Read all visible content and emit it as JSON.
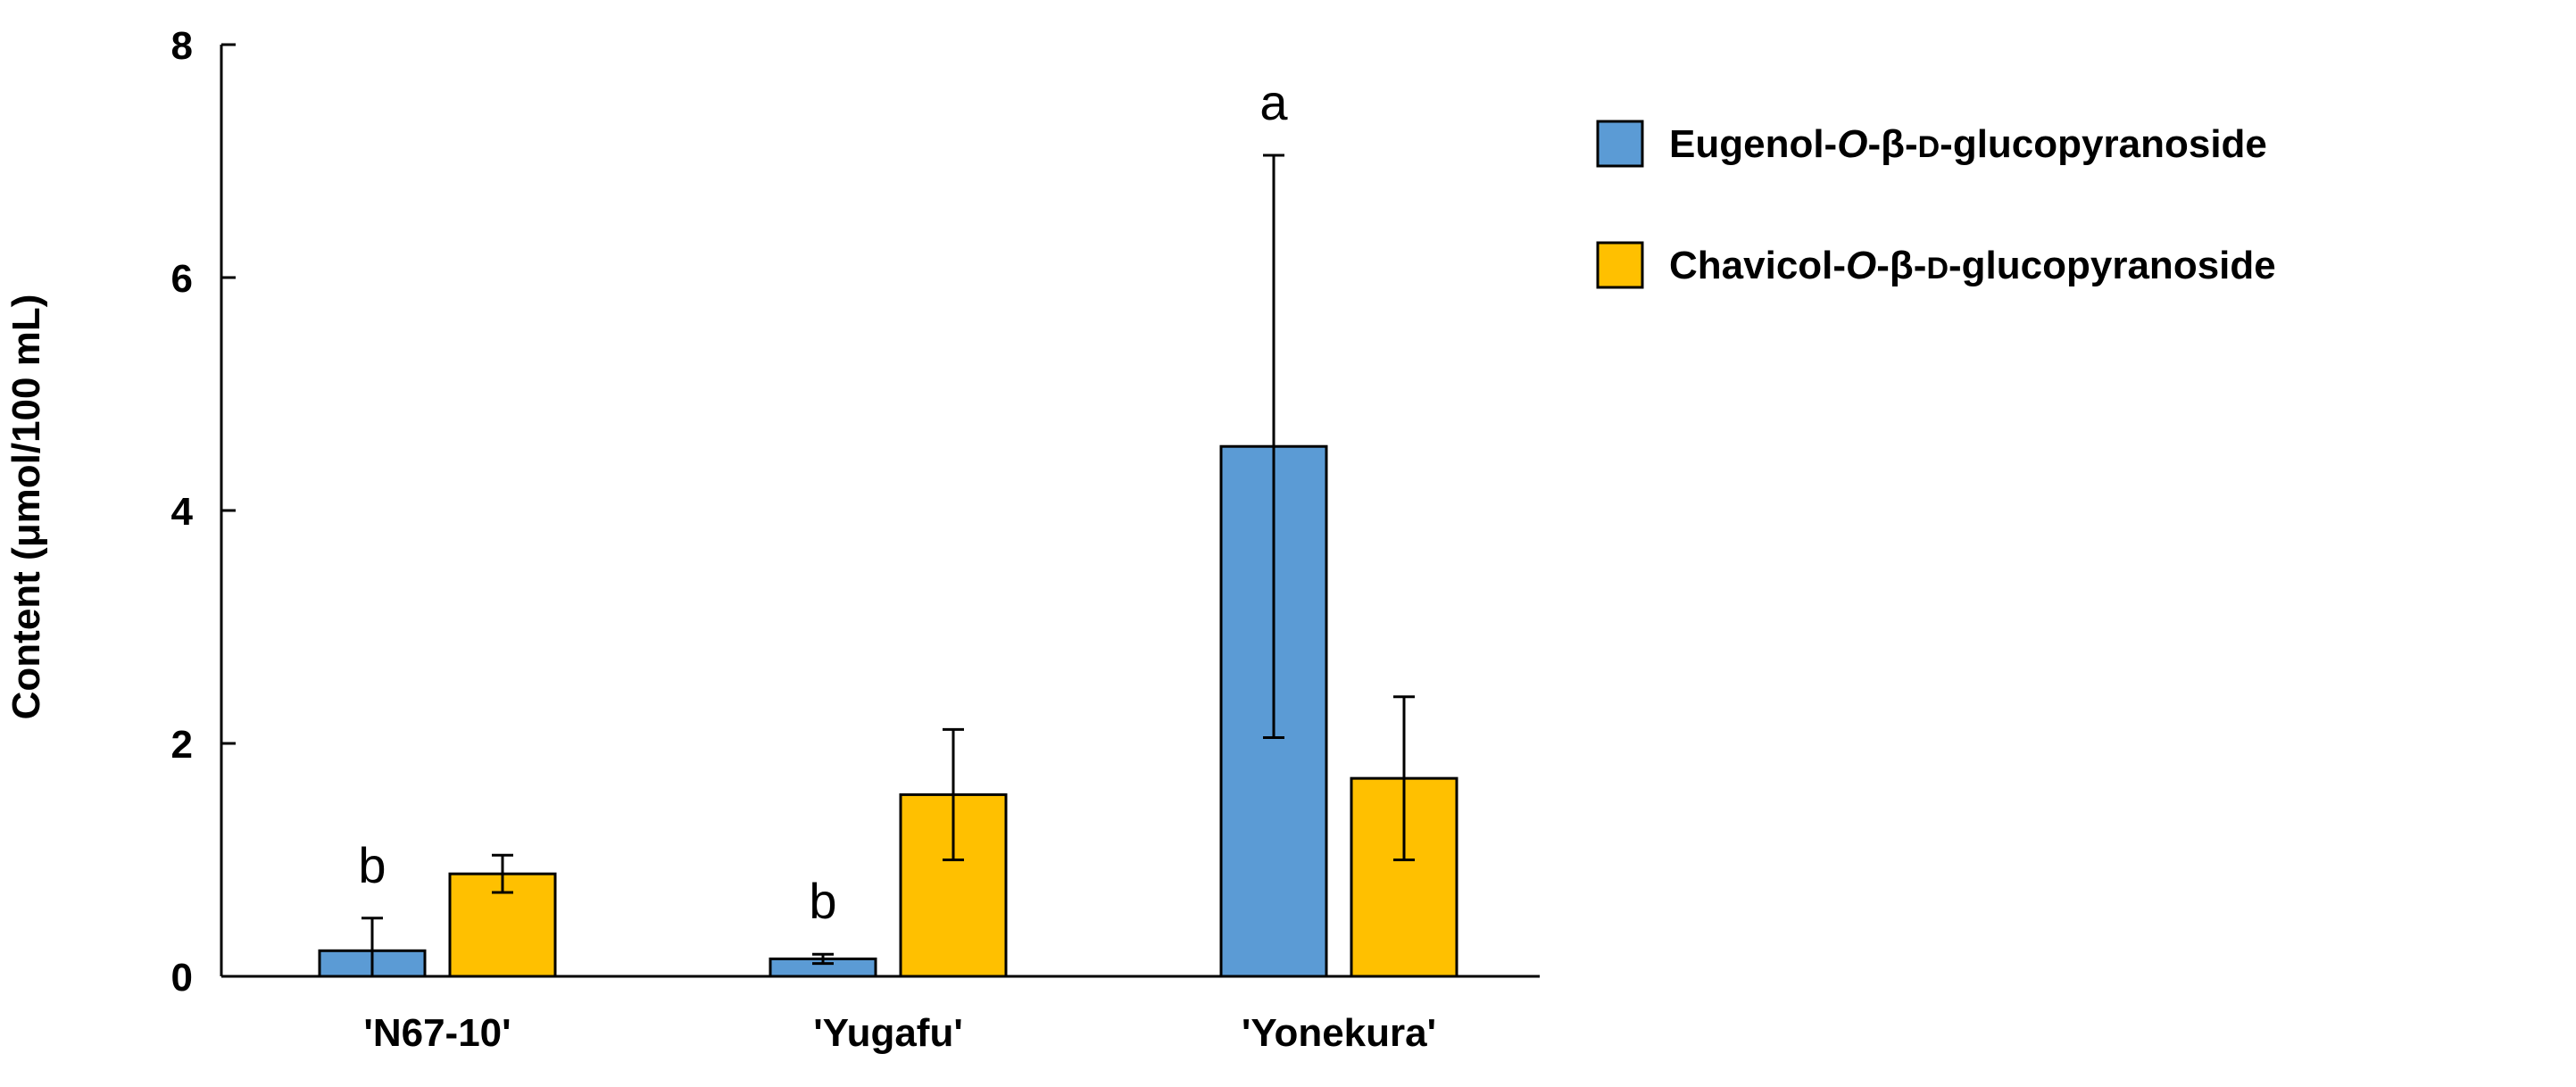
{
  "chart_data": {
    "type": "bar",
    "categories": [
      "'N67-10'",
      "'Yugafu'",
      "'Yonekura'"
    ],
    "ylabel": "Content (μmol/100 mL)",
    "ylim": [
      0,
      8
    ],
    "yticks": [
      0,
      2,
      4,
      6,
      8
    ],
    "legend_position": "top-right",
    "series": [
      {
        "name": "Eugenol-O-β-D-glucopyranoside",
        "legend_parts": [
          {
            "text": "Eugenol-",
            "style": "normal"
          },
          {
            "text": "O",
            "style": "italic"
          },
          {
            "text": "-β-",
            "style": "normal"
          },
          {
            "text": "D",
            "style": "smallcaps"
          },
          {
            "text": "-glucopyranoside",
            "style": "normal"
          }
        ],
        "color": "#5B9BD5",
        "values": [
          0.22,
          0.15,
          4.55
        ],
        "errors": [
          0.28,
          0.04,
          2.5
        ],
        "labels": [
          "b",
          "b",
          "a"
        ]
      },
      {
        "name": "Chavicol-O-β-D-glucopyranoside",
        "legend_parts": [
          {
            "text": "Chavicol-",
            "style": "normal"
          },
          {
            "text": "O",
            "style": "italic"
          },
          {
            "text": "-β-",
            "style": "normal"
          },
          {
            "text": "D",
            "style": "smallcaps"
          },
          {
            "text": "-glucopyranoside",
            "style": "normal"
          }
        ],
        "color": "#FFC000",
        "values": [
          0.88,
          1.56,
          1.7
        ],
        "errors": [
          0.16,
          0.56,
          0.7
        ],
        "labels": [
          "",
          "",
          ""
        ]
      }
    ]
  }
}
